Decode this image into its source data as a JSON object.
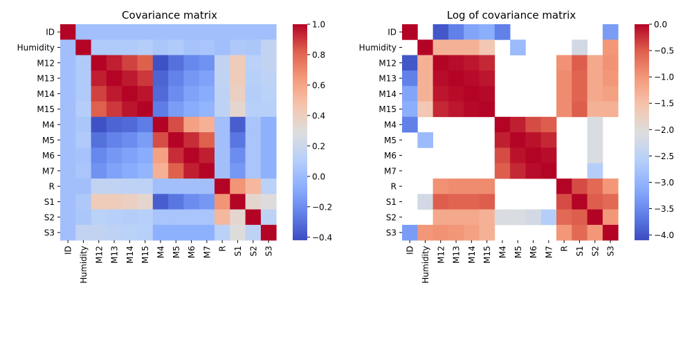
{
  "chart_data": [
    {
      "type": "heatmap",
      "title": "Covariance matrix",
      "labels": [
        "ID",
        "Humidity",
        "M12",
        "M13",
        "M14",
        "M15",
        "M4",
        "M5",
        "M6",
        "M7",
        "R",
        "S1",
        "S2",
        "S3"
      ],
      "vmin": -0.42,
      "vmax": 1.0,
      "colorbar_ticks": [
        1.0,
        0.8,
        0.6,
        0.4,
        0.2,
        0.0,
        -0.2,
        -0.4
      ],
      "colorbar_tick_labels": [
        "1.0",
        "0.8",
        "0.6",
        "0.4",
        "0.2",
        "0.0",
        "−0.2",
        "−0.4"
      ],
      "matrix": [
        [
          1.0,
          0.02,
          0.02,
          0.02,
          0.02,
          0.02,
          0.02,
          0.02,
          0.02,
          0.02,
          0.02,
          0.02,
          0.02,
          0.02
        ],
        [
          0.02,
          1.0,
          0.08,
          0.08,
          0.08,
          0.1,
          0.06,
          0.08,
          0.04,
          0.05,
          0.02,
          0.07,
          0.06,
          0.16
        ],
        [
          0.02,
          0.08,
          1.0,
          0.95,
          0.88,
          0.82,
          -0.4,
          -0.3,
          -0.22,
          -0.18,
          0.16,
          0.42,
          0.12,
          0.16
        ],
        [
          0.02,
          0.08,
          0.95,
          1.0,
          0.96,
          0.9,
          -0.34,
          -0.24,
          -0.16,
          -0.12,
          0.15,
          0.42,
          0.11,
          0.14
        ],
        [
          0.02,
          0.08,
          0.88,
          0.96,
          1.0,
          0.97,
          -0.32,
          -0.2,
          -0.12,
          -0.08,
          0.14,
          0.39,
          0.1,
          0.12
        ],
        [
          0.02,
          0.1,
          0.82,
          0.9,
          0.97,
          1.0,
          -0.26,
          -0.14,
          -0.08,
          -0.04,
          0.14,
          0.34,
          0.11,
          0.11
        ],
        [
          0.02,
          0.06,
          -0.4,
          -0.34,
          -0.32,
          -0.26,
          1.0,
          0.86,
          0.62,
          0.55,
          0.02,
          -0.36,
          0.05,
          -0.06
        ],
        [
          0.02,
          0.08,
          -0.3,
          -0.24,
          -0.2,
          -0.14,
          0.86,
          1.0,
          0.92,
          0.82,
          0.02,
          -0.28,
          0.05,
          -0.06
        ],
        [
          0.02,
          0.04,
          -0.22,
          -0.16,
          -0.12,
          -0.08,
          0.62,
          0.92,
          1.0,
          0.95,
          0.02,
          -0.2,
          0.05,
          -0.06
        ],
        [
          0.02,
          0.05,
          -0.18,
          -0.12,
          -0.08,
          -0.04,
          0.55,
          0.82,
          0.95,
          1.0,
          0.02,
          -0.16,
          0.05,
          -0.06
        ],
        [
          0.02,
          0.02,
          0.16,
          0.15,
          0.14,
          0.14,
          0.02,
          0.02,
          0.02,
          0.02,
          1.0,
          0.66,
          0.52,
          0.12
        ],
        [
          0.02,
          0.07,
          0.42,
          0.42,
          0.39,
          0.34,
          -0.36,
          -0.28,
          -0.2,
          -0.16,
          0.66,
          1.0,
          0.34,
          0.3
        ],
        [
          0.02,
          0.06,
          0.12,
          0.11,
          0.1,
          0.11,
          0.05,
          0.05,
          0.05,
          0.05,
          0.52,
          0.34,
          1.0,
          0.14
        ],
        [
          0.02,
          0.16,
          0.16,
          0.14,
          0.12,
          0.11,
          -0.06,
          -0.06,
          -0.06,
          -0.06,
          0.12,
          0.3,
          0.14,
          1.0
        ]
      ]
    },
    {
      "type": "heatmap",
      "title": "Log of covariance matrix",
      "labels": [
        "ID",
        "Humidity",
        "M12",
        "M13",
        "M14",
        "M15",
        "M4",
        "M5",
        "M6",
        "M7",
        "R",
        "S1",
        "S2",
        "S3"
      ],
      "vmin": -4.1,
      "vmax": 0.0,
      "colorbar_ticks": [
        0.0,
        -0.5,
        -1.0,
        -1.5,
        -2.0,
        -2.5,
        -3.0,
        -3.5,
        -4.0
      ],
      "colorbar_tick_labels": [
        "0.0",
        "−0.5",
        "−1.0",
        "−1.5",
        "−2.0",
        "−2.5",
        "−3.0",
        "−3.5",
        "−4.0"
      ],
      "matrix": [
        [
          0.0,
          null,
          -4.0,
          -3.6,
          -3.2,
          -3.1,
          -3.6,
          null,
          null,
          null,
          null,
          null,
          null,
          -3.3
        ],
        [
          null,
          0.0,
          -1.3,
          -1.3,
          -1.3,
          -1.6,
          null,
          -2.9,
          null,
          null,
          null,
          -2.2,
          null,
          -1.0
        ],
        [
          -4.0,
          -1.3,
          0.0,
          -0.05,
          -0.1,
          -0.2,
          null,
          null,
          null,
          null,
          -0.95,
          -0.5,
          -1.2,
          -0.95
        ],
        [
          -3.6,
          -1.3,
          -0.05,
          0.0,
          -0.04,
          -0.1,
          null,
          null,
          null,
          null,
          -0.9,
          -0.55,
          -1.2,
          -1.0
        ],
        [
          -3.2,
          -1.3,
          -0.1,
          -0.04,
          0.0,
          -0.03,
          null,
          null,
          null,
          null,
          -0.9,
          -0.55,
          -1.2,
          -1.1
        ],
        [
          -3.1,
          -1.6,
          -0.2,
          -0.1,
          -0.03,
          0.0,
          null,
          null,
          null,
          null,
          -0.9,
          -0.5,
          -1.3,
          -1.3
        ],
        [
          -3.6,
          null,
          null,
          null,
          null,
          null,
          0.0,
          -0.15,
          -0.4,
          -0.5,
          null,
          null,
          -2.1,
          null
        ],
        [
          null,
          -2.9,
          null,
          null,
          null,
          null,
          -0.15,
          0.0,
          -0.08,
          -0.2,
          null,
          null,
          -2.1,
          null
        ],
        [
          null,
          null,
          null,
          null,
          null,
          null,
          -0.4,
          -0.08,
          0.0,
          -0.05,
          null,
          null,
          -2.1,
          null
        ],
        [
          null,
          null,
          null,
          null,
          null,
          null,
          -0.5,
          -0.2,
          -0.05,
          0.0,
          null,
          null,
          -2.6,
          null
        ],
        [
          null,
          null,
          -0.95,
          -0.9,
          -0.9,
          -0.9,
          null,
          null,
          null,
          null,
          0.0,
          -0.4,
          -0.6,
          -1.0
        ],
        [
          null,
          -2.2,
          -0.5,
          -0.55,
          -0.55,
          -0.5,
          null,
          null,
          null,
          null,
          -0.4,
          0.0,
          -0.5,
          -0.6
        ],
        [
          null,
          null,
          -1.2,
          -1.2,
          -1.2,
          -1.3,
          -2.1,
          -2.1,
          -2.2,
          -2.6,
          -0.6,
          -0.5,
          0.0,
          -1.0
        ],
        [
          -3.3,
          -1.0,
          -0.95,
          -1.0,
          -1.1,
          -1.3,
          null,
          null,
          null,
          null,
          -1.0,
          -0.6,
          -1.0,
          0.0
        ]
      ]
    }
  ]
}
